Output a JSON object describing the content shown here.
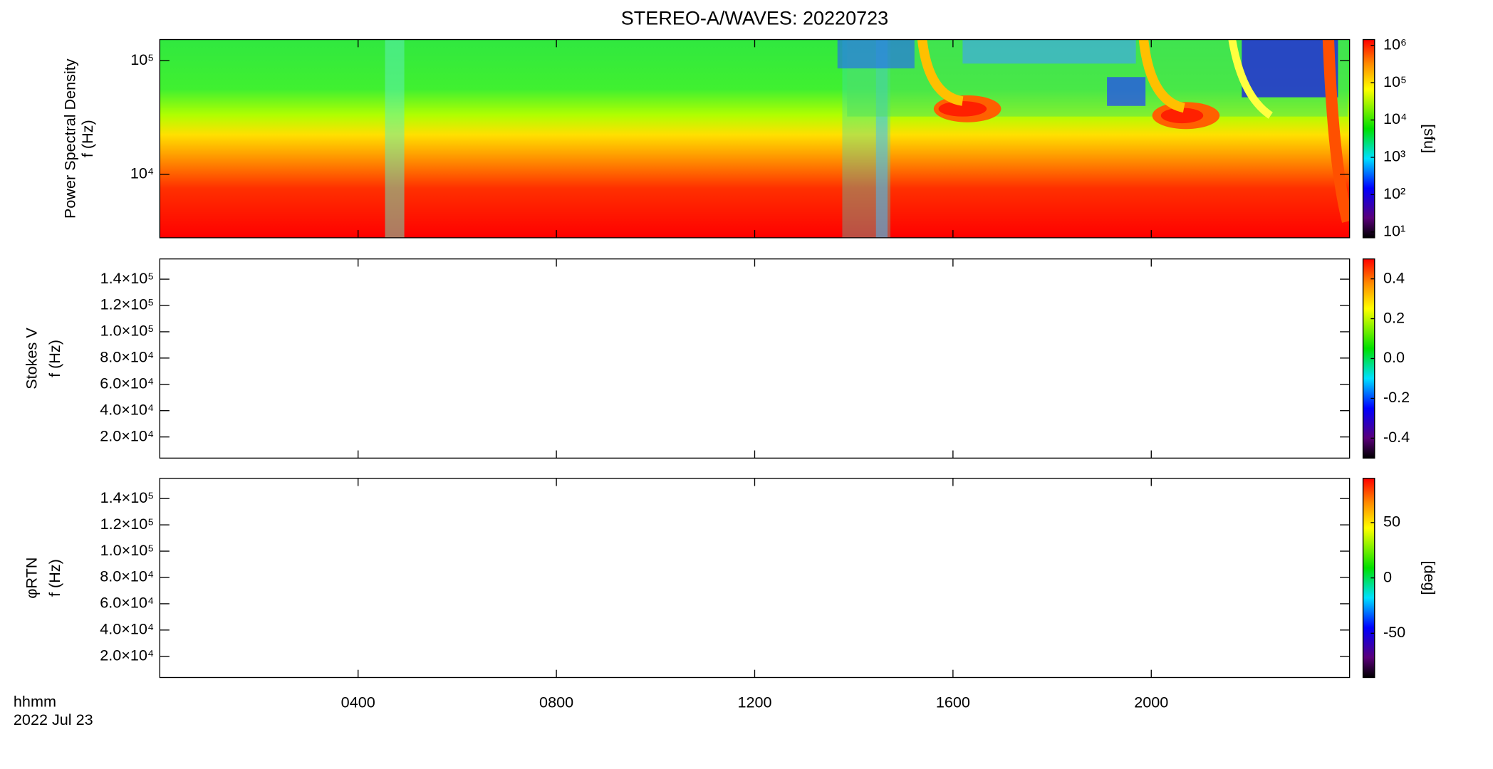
{
  "chart_data": [
    {
      "type": "heatmap",
      "title": "STEREO-A/WAVES: 20220723",
      "ylabel": [
        "Power Spectral Density",
        "f (Hz)"
      ],
      "ylog": true,
      "ylim": [
        2760,
        153500
      ],
      "yticks": [
        {
          "value": 10000,
          "label": "10⁴"
        },
        {
          "value": 100000,
          "label": "10⁵"
        }
      ],
      "zlog": true,
      "zlim": [
        7,
        1430000
      ],
      "zlabel": "[sfu]",
      "zticks": [
        {
          "value": 10,
          "label": "10¹"
        },
        {
          "value": 100,
          "label": "10²"
        },
        {
          "value": 1000,
          "label": "10³"
        },
        {
          "value": 10000,
          "label": "10⁴"
        },
        {
          "value": 100000,
          "label": "10⁵"
        },
        {
          "value": 1000000,
          "label": "10⁶"
        }
      ]
    },
    {
      "type": "heatmap",
      "ylabel": [
        "Stokes V",
        "f (Hz)"
      ],
      "ylog": false,
      "ylim": [
        3900,
        155400
      ],
      "yticks": [
        {
          "value": 20000,
          "label": "2.0×10⁴"
        },
        {
          "value": 40000,
          "label": "4.0×10⁴"
        },
        {
          "value": 60000,
          "label": "6.0×10⁴"
        },
        {
          "value": 80000,
          "label": "8.0×10⁴"
        },
        {
          "value": 100000,
          "label": "1.0×10⁵"
        },
        {
          "value": 120000,
          "label": "1.2×10⁵"
        },
        {
          "value": 140000,
          "label": "1.4×10⁵"
        }
      ],
      "zlog": false,
      "zlim": [
        -0.5,
        0.5
      ],
      "zticks": [
        -0.4,
        -0.2,
        {
          "value": 0,
          "label": "0.0"
        },
        0.2,
        0.4
      ]
    },
    {
      "type": "heatmap",
      "ylabel": [
        "φRTN",
        "f (Hz)"
      ],
      "ylog": false,
      "ylim": [
        3900,
        155400
      ],
      "yticks": [
        {
          "value": 20000,
          "label": "2.0×10⁴"
        },
        {
          "value": 40000,
          "label": "4.0×10⁴"
        },
        {
          "value": 60000,
          "label": "6.0×10⁴"
        },
        {
          "value": 80000,
          "label": "8.0×10⁴"
        },
        {
          "value": 100000,
          "label": "1.0×10⁵"
        },
        {
          "value": 120000,
          "label": "1.2×10⁵"
        },
        {
          "value": 140000,
          "label": "1.4×10⁵"
        }
      ],
      "zlog": false,
      "zlim": [
        -90,
        90
      ],
      "zlabel": "[deg]",
      "zticks": [
        -50,
        0,
        50
      ]
    }
  ],
  "x_axis": {
    "xlim": [
      0,
      24
    ],
    "xticks": [
      {
        "value": 4,
        "label": "0400"
      },
      {
        "value": 8,
        "label": "0800"
      },
      {
        "value": 12,
        "label": "1200"
      },
      {
        "value": 16,
        "label": "1600"
      },
      {
        "value": 20,
        "label": "2000"
      }
    ],
    "format_label": "hhmm",
    "date_label": "2022 Jul 23"
  }
}
